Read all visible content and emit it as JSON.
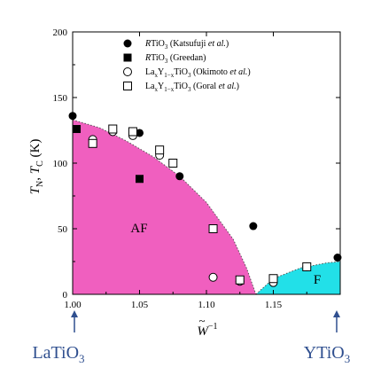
{
  "chart_data": {
    "type": "scatter",
    "xlabel": "W̃⁻¹",
    "ylabel": "T_N, T_C (K)",
    "xlim": [
      1.0,
      1.2
    ],
    "ylim": [
      0,
      200
    ],
    "x_ticks": [
      "1.00",
      "1.05",
      "1.10",
      "1.15"
    ],
    "y_ticks": [
      "0",
      "50",
      "100",
      "150",
      "200"
    ],
    "grid": false,
    "legend_placement": "top-right",
    "regions": [
      {
        "label": "AF",
        "color": "#f05fbf",
        "boundary_x": [
          1.0,
          1.02,
          1.04,
          1.06,
          1.08,
          1.1,
          1.12,
          1.13,
          1.137
        ],
        "boundary_y": [
          133,
          127,
          117,
          105,
          90,
          70,
          42,
          20,
          0
        ]
      },
      {
        "label": "F",
        "color": "#22e0e8",
        "boundary_x": [
          1.137,
          1.15,
          1.17,
          1.19,
          1.2
        ],
        "boundary_y": [
          0,
          12,
          20,
          24,
          25
        ]
      }
    ],
    "series": [
      {
        "name_prefix": "RTiO",
        "name_sub": "3",
        "name_suffix": " (Katsufuji ",
        "name_italic": "et al.",
        "name_end": ")",
        "marker": "filled-circle",
        "x": [
          1.0,
          1.05,
          1.08,
          1.135,
          1.198
        ],
        "y": [
          136,
          123,
          90,
          52,
          28
        ]
      },
      {
        "name_prefix": "RTiO",
        "name_sub": "3",
        "name_suffix": " (Greedan)",
        "name_italic": "",
        "name_end": "",
        "marker": "filled-square",
        "x": [
          1.003,
          1.05
        ],
        "y": [
          126,
          88
        ]
      },
      {
        "name_prefix": "La",
        "name_sub": "x",
        "name_mid": "Y",
        "name_sub2": "1−x",
        "name_mid2": "TiO",
        "name_sub3": "3",
        "name_suffix": " (Okimoto ",
        "name_italic": "et al.",
        "name_end": ")",
        "marker": "open-circle",
        "x": [
          1.015,
          1.03,
          1.045,
          1.065,
          1.105,
          1.125,
          1.15,
          1.175
        ],
        "y": [
          118,
          124,
          121,
          106,
          13,
          10,
          9,
          21
        ]
      },
      {
        "name_prefix": "La",
        "name_sub": "x",
        "name_mid": "Y",
        "name_sub2": "1−x",
        "name_mid2": "TiO",
        "name_sub3": "3",
        "name_suffix": " (Goral ",
        "name_italic": "et al.",
        "name_end": ")",
        "marker": "open-square",
        "x": [
          1.015,
          1.03,
          1.045,
          1.065,
          1.075,
          1.105,
          1.125,
          1.15,
          1.175
        ],
        "y": [
          115,
          126,
          124,
          110,
          100,
          50,
          11,
          12,
          21
        ]
      }
    ]
  },
  "labels": {
    "region_af": "AF",
    "region_f": "F",
    "ylabel_T": "T",
    "ylabel_N": "N",
    "ylabel_sep": ", ",
    "ylabel_C": "C",
    "ylabel_unit": " (K)",
    "xlabel_W": "W",
    "xlabel_tilde": "~",
    "xlabel_exp": "−1",
    "left_compound": "LaTiO",
    "left_compound_sub": "3",
    "right_compound": "YTiO",
    "right_compound_sub": "3"
  }
}
